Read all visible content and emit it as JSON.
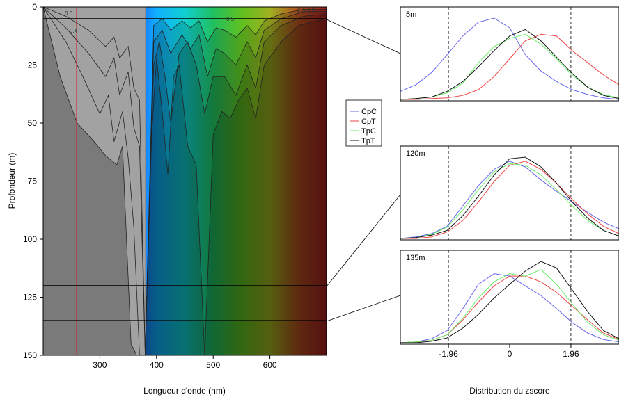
{
  "chart_data": [
    {
      "type": "area",
      "xlabel": "Longueur d'onde (nm)",
      "ylabel": "Profondeur (m)",
      "xlim": [
        200,
        700
      ],
      "ylim": [
        150,
        0
      ],
      "xticks": [
        "300",
        "400",
        "500",
        "600"
      ],
      "yticks": [
        "0",
        "25",
        "50",
        "75",
        "100",
        "125",
        "150"
      ],
      "vertical_line": {
        "x": 260,
        "color": "#d02020"
      },
      "depth_lines": [
        5,
        120,
        135
      ],
      "contour_labels": [
        "0.6",
        "0.4",
        "0.5",
        "0.6",
        "0.5"
      ],
      "contour_depths": [
        {
          "x": [
            200,
            230,
            260,
            290,
            310,
            330,
            340,
            355,
            365,
            372,
            380,
            390,
            400,
            410,
            420,
            430,
            440,
            455,
            470,
            485,
            500,
            515,
            530,
            545,
            560,
            575,
            590,
            620,
            650,
            700
          ],
          "y": [
            0,
            30,
            50,
            58,
            64,
            68,
            60,
            145,
            150,
            150,
            150,
            60,
            22,
            45,
            72,
            30,
            25,
            60,
            68,
            150,
            55,
            45,
            48,
            40,
            35,
            48,
            25,
            15,
            8,
            5
          ]
        },
        {
          "x": [
            200,
            240,
            270,
            300,
            315,
            325,
            340,
            350,
            360,
            370,
            380,
            395,
            405,
            415,
            425,
            440,
            455,
            470,
            485,
            500,
            520,
            540,
            560,
            575,
            590,
            620,
            660,
            700
          ],
          "y": [
            0,
            15,
            30,
            46,
            38,
            58,
            45,
            65,
            95,
            150,
            150,
            25,
            15,
            30,
            50,
            20,
            15,
            25,
            46,
            30,
            30,
            38,
            25,
            35,
            15,
            8,
            4,
            3
          ]
        },
        {
          "x": [
            200,
            240,
            280,
            310,
            325,
            335,
            350,
            360,
            370,
            380,
            395,
            410,
            425,
            445,
            460,
            475,
            490,
            505,
            520,
            540,
            560,
            575,
            590,
            620,
            660,
            700
          ],
          "y": [
            0,
            9,
            20,
            30,
            22,
            38,
            28,
            52,
            60,
            150,
            15,
            10,
            20,
            12,
            18,
            12,
            30,
            18,
            20,
            25,
            15,
            22,
            10,
            5,
            2,
            2
          ]
        },
        {
          "x": [
            200,
            240,
            280,
            310,
            325,
            335,
            350,
            360,
            370,
            380,
            395,
            410,
            425,
            445,
            460,
            475,
            490,
            505,
            520,
            540,
            560,
            575,
            590,
            620,
            660,
            700
          ],
          "y": [
            0,
            4,
            10,
            17,
            13,
            22,
            17,
            35,
            40,
            150,
            8,
            5,
            10,
            6,
            9,
            6,
            15,
            9,
            10,
            13,
            8,
            12,
            6,
            3,
            1,
            1
          ]
        }
      ],
      "color_gradient": [
        "#9aa0a8",
        "#b020d0",
        "#6030f0",
        "#2040ff",
        "#10b0ff",
        "#10d0d0",
        "#20c060",
        "#60c020",
        "#a0b020",
        "#b05020",
        "#a02020"
      ]
    },
    {
      "type": "line",
      "panel_label": "5m",
      "xlabel": "",
      "xlim": [
        -3.5,
        3.5
      ],
      "ref_lines": [
        -1.96,
        1.96
      ],
      "series": [
        {
          "name": "CpC",
          "color": "#6666ee",
          "x": [
            -3.5,
            -3.0,
            -2.5,
            -2.0,
            -1.5,
            -1.0,
            -0.5,
            0.0,
            0.5,
            1.0,
            1.5,
            2.0,
            2.5,
            3.0,
            3.5
          ],
          "y": [
            0.1,
            0.18,
            0.33,
            0.55,
            0.78,
            0.95,
            1.0,
            0.88,
            0.55,
            0.35,
            0.22,
            0.12,
            0.06,
            0.02,
            0.0
          ]
        },
        {
          "name": "CpT",
          "color": "#ee4444",
          "x": [
            -3.5,
            -3.0,
            -2.5,
            -2.0,
            -1.5,
            -1.0,
            -0.5,
            0.0,
            0.5,
            1.0,
            1.5,
            2.0,
            2.5,
            3.0,
            3.5
          ],
          "y": [
            0.0,
            0.0,
            0.01,
            0.02,
            0.05,
            0.12,
            0.28,
            0.5,
            0.72,
            0.8,
            0.78,
            0.6,
            0.45,
            0.3,
            0.18
          ]
        },
        {
          "name": "TpC",
          "color": "#66ee66",
          "x": [
            -3.5,
            -3.0,
            -2.5,
            -2.0,
            -1.5,
            -1.0,
            -0.5,
            0.0,
            0.5,
            1.0,
            1.5,
            2.0,
            2.5,
            3.0,
            3.5
          ],
          "y": [
            0.0,
            0.01,
            0.03,
            0.08,
            0.2,
            0.45,
            0.65,
            0.75,
            0.8,
            0.68,
            0.5,
            0.3,
            0.15,
            0.06,
            0.02
          ]
        },
        {
          "name": "TpT",
          "color": "#111111",
          "x": [
            -3.5,
            -3.0,
            -2.5,
            -2.0,
            -1.5,
            -1.0,
            -0.5,
            0.0,
            0.5,
            1.0,
            1.5,
            2.0,
            2.5,
            3.0,
            3.5
          ],
          "y": [
            0.0,
            0.01,
            0.03,
            0.1,
            0.22,
            0.4,
            0.6,
            0.78,
            0.86,
            0.72,
            0.52,
            0.32,
            0.15,
            0.05,
            0.01
          ]
        }
      ]
    },
    {
      "type": "line",
      "panel_label": "120m",
      "xlabel": "",
      "xlim": [
        -3.5,
        3.5
      ],
      "ref_lines": [
        -1.96,
        1.96
      ],
      "series": [
        {
          "name": "CpC",
          "color": "#6666ee",
          "x": [
            -3.5,
            -3.0,
            -2.5,
            -2.0,
            -1.5,
            -1.0,
            -0.5,
            0.0,
            0.5,
            1.0,
            1.5,
            2.0,
            2.5,
            3.0,
            3.5
          ],
          "y": [
            0.0,
            0.02,
            0.06,
            0.15,
            0.4,
            0.65,
            0.85,
            0.95,
            0.88,
            0.72,
            0.58,
            0.45,
            0.32,
            0.2,
            0.12
          ]
        },
        {
          "name": "CpT",
          "color": "#ee4444",
          "x": [
            -3.5,
            -3.0,
            -2.5,
            -2.0,
            -1.5,
            -1.0,
            -0.5,
            0.0,
            0.5,
            1.0,
            1.5,
            2.0,
            2.5,
            3.0,
            3.5
          ],
          "y": [
            0.0,
            0.0,
            0.02,
            0.08,
            0.22,
            0.45,
            0.7,
            0.9,
            0.95,
            0.85,
            0.68,
            0.48,
            0.3,
            0.15,
            0.06
          ]
        },
        {
          "name": "TpC",
          "color": "#66ee66",
          "x": [
            -3.5,
            -3.0,
            -2.5,
            -2.0,
            -1.5,
            -1.0,
            -0.5,
            0.0,
            0.5,
            1.0,
            1.5,
            2.0,
            2.5,
            3.0,
            3.5
          ],
          "y": [
            0.0,
            0.01,
            0.05,
            0.14,
            0.35,
            0.6,
            0.82,
            0.92,
            0.9,
            0.78,
            0.6,
            0.4,
            0.22,
            0.1,
            0.03
          ]
        },
        {
          "name": "TpT",
          "color": "#111111",
          "x": [
            -3.5,
            -3.0,
            -2.5,
            -2.0,
            -1.5,
            -1.0,
            -0.5,
            0.0,
            0.5,
            1.0,
            1.5,
            2.0,
            2.5,
            3.0,
            3.5
          ],
          "y": [
            0.0,
            0.01,
            0.04,
            0.1,
            0.28,
            0.52,
            0.78,
            0.98,
            1.0,
            0.88,
            0.68,
            0.45,
            0.25,
            0.1,
            0.03
          ]
        }
      ]
    },
    {
      "type": "line",
      "panel_label": "135m",
      "xlabel": "Distribution du zscore",
      "xlim": [
        -3.5,
        3.5
      ],
      "ref_lines": [
        -1.96,
        1.96
      ],
      "xticks": [
        -1.96,
        0,
        1.96
      ],
      "xtick_labels": [
        "-1.96",
        "0",
        "1.96"
      ],
      "series": [
        {
          "name": "CpC",
          "color": "#6666ee",
          "x": [
            -3.5,
            -3.0,
            -2.5,
            -2.0,
            -1.5,
            -1.0,
            -0.5,
            0.0,
            0.5,
            1.0,
            1.5,
            2.0,
            2.5,
            3.0,
            3.5
          ],
          "y": [
            0.0,
            0.01,
            0.05,
            0.15,
            0.42,
            0.72,
            0.85,
            0.82,
            0.7,
            0.58,
            0.42,
            0.25,
            0.12,
            0.04,
            0.01
          ]
        },
        {
          "name": "CpT",
          "color": "#ee4444",
          "x": [
            -3.5,
            -3.0,
            -2.5,
            -2.0,
            -1.5,
            -1.0,
            -0.5,
            0.0,
            0.5,
            1.0,
            1.5,
            2.0,
            2.5,
            3.0,
            3.5
          ],
          "y": [
            0.0,
            0.01,
            0.03,
            0.1,
            0.28,
            0.5,
            0.7,
            0.82,
            0.82,
            0.75,
            0.62,
            0.45,
            0.28,
            0.12,
            0.04
          ]
        },
        {
          "name": "TpC",
          "color": "#66ee66",
          "x": [
            -3.5,
            -3.0,
            -2.5,
            -2.0,
            -1.5,
            -1.0,
            -0.5,
            0.0,
            0.5,
            1.0,
            1.5,
            2.0,
            2.5,
            3.0,
            3.5
          ],
          "y": [
            0.0,
            0.01,
            0.03,
            0.1,
            0.3,
            0.55,
            0.75,
            0.85,
            0.82,
            0.9,
            0.72,
            0.48,
            0.25,
            0.1,
            0.03
          ]
        },
        {
          "name": "TpT",
          "color": "#111111",
          "x": [
            -3.5,
            -3.0,
            -2.5,
            -2.0,
            -1.5,
            -1.0,
            -0.5,
            0.0,
            0.5,
            1.0,
            1.5,
            2.0,
            2.5,
            3.0,
            3.5
          ],
          "y": [
            0.0,
            0.0,
            0.02,
            0.06,
            0.18,
            0.35,
            0.55,
            0.72,
            0.88,
            1.0,
            0.92,
            0.65,
            0.38,
            0.15,
            0.05
          ]
        }
      ]
    }
  ]
}
